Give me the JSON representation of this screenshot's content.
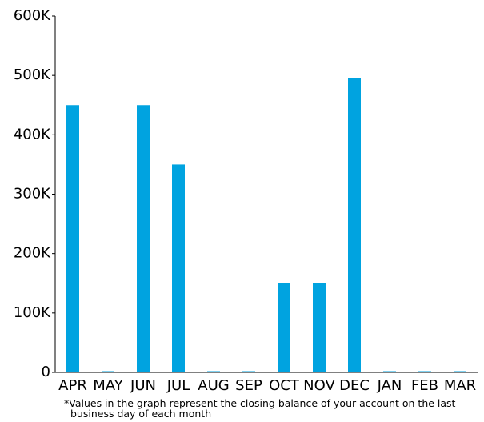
{
  "chart_data": {
    "type": "bar",
    "categories": [
      "APR",
      "MAY",
      "JUN",
      "JUL",
      "AUG",
      "SEP",
      "OCT",
      "NOV",
      "DEC",
      "JAN",
      "FEB",
      "MAR"
    ],
    "values": [
      450000,
      0,
      450000,
      350000,
      0,
      0,
      150000,
      150000,
      495000,
      0,
      0,
      0
    ],
    "color": "#00a3e0",
    "ylim": [
      0,
      600000
    ],
    "yticks": [
      0,
      {
        "value": 100000,
        "label": "100K"
      },
      {
        "value": 200000,
        "label": "200K"
      },
      {
        "value": 300000,
        "label": "300K"
      },
      {
        "value": 400000,
        "label": "400K"
      },
      {
        "value": 500000,
        "label": "500K"
      },
      {
        "value": 600000,
        "label": "600K"
      }
    ],
    "grid": false,
    "footnote": "*Values in the graph represent the closing balance of your account on the last business day of each month"
  }
}
